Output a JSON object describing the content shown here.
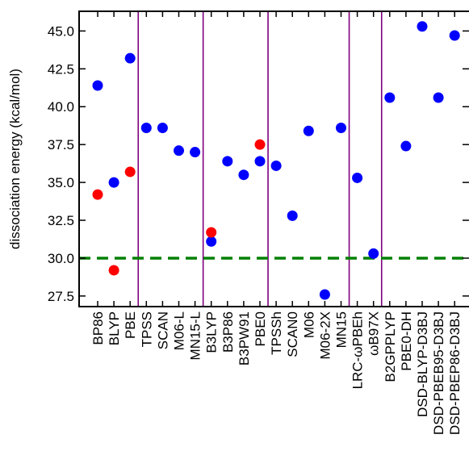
{
  "chart_data": {
    "type": "scatter",
    "ylabel": "dissociation energy (kcal/mol)",
    "ylim": [
      26.8,
      46.3
    ],
    "yticks": [
      27.5,
      30.0,
      32.5,
      35.0,
      37.5,
      40.0,
      42.5,
      45.0
    ],
    "ytick_labels": [
      "27.5",
      "30.0",
      "32.5",
      "35.0",
      "37.5",
      "40.0",
      "42.5",
      "45.0"
    ],
    "categories": [
      "BP86",
      "BLYP",
      "PBE",
      "TPSS",
      "SCAN",
      "M06-L",
      "MN15-L",
      "B3LYP",
      "B3P86",
      "B3PW91",
      "PBE0",
      "TPSSh",
      "SCAN0",
      "M06",
      "M06-2X",
      "MN15",
      "LRC-ωPBEh",
      "ωB97X",
      "B2GPPLYP",
      "PBE0-DH",
      "DSD-BLYP-D3BJ",
      "DSD-PBEB95-D3BJ",
      "DSD-PBEP86-D3BJ"
    ],
    "series": [
      {
        "color": "#0000ff",
        "values": [
          41.4,
          35.0,
          43.2,
          38.6,
          38.6,
          37.1,
          37.0,
          31.1,
          36.4,
          35.5,
          36.4,
          36.1,
          32.8,
          38.4,
          27.6,
          38.6,
          35.3,
          30.3,
          40.6,
          37.4,
          45.3,
          40.6,
          44.7
        ]
      },
      {
        "color": "#ff0000",
        "values": [
          34.2,
          29.2,
          35.7,
          null,
          null,
          null,
          null,
          31.7,
          null,
          null,
          37.5,
          null,
          null,
          null,
          null,
          null,
          null,
          null,
          null,
          null,
          null,
          null,
          null
        ]
      }
    ],
    "reference_line": {
      "y": 30.0,
      "color": "#008000",
      "style": "dashed"
    },
    "group_separators_after": [
      "PBE",
      "MN15-L",
      "PBE0",
      "MN15",
      "ωB97X"
    ],
    "separator_color": "#800080",
    "grid": false
  }
}
